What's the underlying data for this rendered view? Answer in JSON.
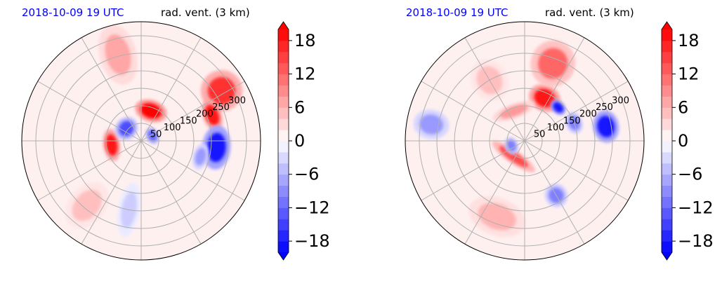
{
  "figure": {
    "panels": [
      {
        "date_label": "2018-10-09 19 UTC",
        "variable_label": "rad. vent. (3 km)"
      },
      {
        "date_label": "2018-10-09 19 UTC",
        "variable_label": "rad. vent. (3 km)"
      }
    ]
  },
  "colors": {
    "title_blue": "#0000ff",
    "grid": "#b0b0b0",
    "positive": "#ff0000",
    "negative": "#0000ff",
    "neutral": "#ffffff"
  },
  "chart_data": [
    {
      "type": "heatmap",
      "projection": "polar",
      "title_left": "2018-10-09 19 UTC",
      "title_right": "rad. vent. (3 km)",
      "radial_ticks": [
        50,
        100,
        150,
        200,
        250,
        300
      ],
      "radial_tick_labels": [
        "50",
        "100",
        "150",
        "200",
        "250",
        "300"
      ],
      "angular_grid_step_deg": 30,
      "grid": true,
      "colorbar": {
        "range": [
          -20,
          20
        ],
        "extend": "both",
        "levels": [
          -20,
          -18,
          -16,
          -14,
          -12,
          -10,
          -8,
          -6,
          -4,
          -2,
          0,
          2,
          4,
          6,
          8,
          10,
          12,
          14,
          16,
          18,
          20
        ],
        "ticks": [
          -18,
          -12,
          -6,
          0,
          6,
          12,
          18
        ],
        "tick_labels": [
          "−18",
          "−12",
          "−6",
          "0",
          "6",
          "12",
          "18"
        ],
        "cmap": "bwr"
      },
      "features": [
        {
          "kind": "positive",
          "r": 90,
          "theta": 72,
          "dr": 22,
          "dth": 22,
          "v": 20
        },
        {
          "kind": "positive",
          "r": 270,
          "theta": 32,
          "dr": 28,
          "dth": 14,
          "v": 16
        },
        {
          "kind": "positive",
          "r": 215,
          "theta": 20,
          "dr": 22,
          "dth": 8,
          "v": 18
        },
        {
          "kind": "positive",
          "r": 85,
          "theta": 188,
          "dr": 22,
          "dth": 18,
          "v": 18
        },
        {
          "kind": "positive",
          "r": 255,
          "theta": 105,
          "dr": 25,
          "dth": 22,
          "v": 7
        },
        {
          "kind": "positive",
          "r": 240,
          "theta": 230,
          "dr": 25,
          "dth": 20,
          "v": 5
        },
        {
          "kind": "negative",
          "r": 55,
          "theta": 140,
          "dr": 16,
          "dth": 35,
          "v": -14
        },
        {
          "kind": "negative",
          "r": 35,
          "theta": 25,
          "dr": 12,
          "dth": 30,
          "v": -12
        },
        {
          "kind": "negative",
          "r": 215,
          "theta": 355,
          "dr": 30,
          "dth": 12,
          "v": -18
        },
        {
          "kind": "negative",
          "r": 175,
          "theta": 345,
          "dr": 18,
          "dth": 8,
          "v": -8
        },
        {
          "kind": "negative",
          "r": 200,
          "theta": 260,
          "dr": 15,
          "dth": 25,
          "v": -4
        }
      ]
    },
    {
      "type": "heatmap",
      "projection": "polar",
      "title_left": "2018-10-09 19 UTC",
      "title_right": "rad. vent. (3 km)",
      "radial_ticks": [
        50,
        100,
        150,
        200,
        250,
        300
      ],
      "radial_tick_labels": [
        "50",
        "100",
        "150",
        "200",
        "250",
        "300"
      ],
      "angular_grid_step_deg": 30,
      "grid": true,
      "colorbar": {
        "range": [
          -20,
          20
        ],
        "extend": "both",
        "levels": [
          -20,
          -18,
          -16,
          -14,
          -12,
          -10,
          -8,
          -6,
          -4,
          -2,
          0,
          2,
          4,
          6,
          8,
          10,
          12,
          14,
          16,
          18,
          20
        ],
        "ticks": [
          -18,
          -12,
          -6,
          0,
          6,
          12,
          18
        ],
        "tick_labels": [
          "−18",
          "−12",
          "−6",
          "0",
          "6",
          "12",
          "18"
        ],
        "cmap": "bwr"
      },
      "features": [
        {
          "kind": "positive",
          "r": 135,
          "theta": 65,
          "dr": 22,
          "dth": 18,
          "v": 18
        },
        {
          "kind": "positive",
          "r": 235,
          "theta": 70,
          "dr": 30,
          "dth": 18,
          "v": 12
        },
        {
          "kind": "positive",
          "r": 55,
          "theta": 235,
          "dr": 35,
          "dth": 22,
          "v": 14
        },
        {
          "kind": "positive",
          "r": 90,
          "theta": 110,
          "dr": 30,
          "dth": 15,
          "v": 8
        },
        {
          "kind": "positive",
          "r": 230,
          "theta": 250,
          "dr": 40,
          "dth": 15,
          "v": 6
        },
        {
          "kind": "positive",
          "r": 200,
          "theta": 120,
          "dr": 25,
          "dth": 20,
          "v": 5
        },
        {
          "kind": "negative",
          "r": 135,
          "theta": 45,
          "dr": 12,
          "dth": 8,
          "v": -18
        },
        {
          "kind": "negative",
          "r": 235,
          "theta": 10,
          "dr": 22,
          "dth": 10,
          "v": -18
        },
        {
          "kind": "negative",
          "r": 40,
          "theta": 200,
          "dr": 12,
          "dth": 30,
          "v": -10
        },
        {
          "kind": "negative",
          "r": 180,
          "theta": 300,
          "dr": 15,
          "dth": 12,
          "v": -10
        },
        {
          "kind": "negative",
          "r": 270,
          "theta": 170,
          "dr": 20,
          "dth": 12,
          "v": -8
        },
        {
          "kind": "negative",
          "r": 150,
          "theta": 20,
          "dr": 15,
          "dth": 10,
          "v": -10
        }
      ]
    }
  ]
}
